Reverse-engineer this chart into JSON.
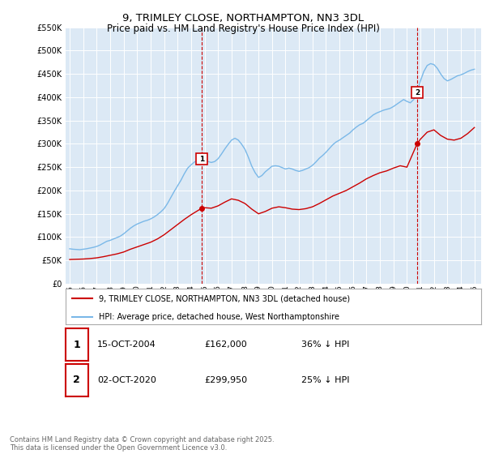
{
  "title": "9, TRIMLEY CLOSE, NORTHAMPTON, NN3 3DL",
  "subtitle": "Price paid vs. HM Land Registry's House Price Index (HPI)",
  "title_fontsize": 9.5,
  "subtitle_fontsize": 8.5,
  "background_color": "#ffffff",
  "plot_bg_color": "#dce9f5",
  "grid_color": "#ffffff",
  "ylim": [
    0,
    550000
  ],
  "yticks": [
    0,
    50000,
    100000,
    150000,
    200000,
    250000,
    300000,
    350000,
    400000,
    450000,
    500000,
    550000
  ],
  "xlim_start": 1994.7,
  "xlim_end": 2025.5,
  "xtick_years": [
    1995,
    1996,
    1997,
    1998,
    1999,
    2000,
    2001,
    2002,
    2003,
    2004,
    2005,
    2006,
    2007,
    2008,
    2009,
    2010,
    2011,
    2012,
    2013,
    2014,
    2015,
    2016,
    2017,
    2018,
    2019,
    2020,
    2021,
    2022,
    2023,
    2024,
    2025
  ],
  "hpi_color": "#7ab8e8",
  "price_color": "#cc0000",
  "marker1_x": 2004.79,
  "marker1_y": 162000,
  "marker2_x": 2020.75,
  "marker2_y": 299950,
  "legend_line1": "9, TRIMLEY CLOSE, NORTHAMPTON, NN3 3DL (detached house)",
  "legend_line2": "HPI: Average price, detached house, West Northamptonshire",
  "ann1_date": "15-OCT-2004",
  "ann1_price": "£162,000",
  "ann1_hpi": "36% ↓ HPI",
  "ann2_date": "02-OCT-2020",
  "ann2_price": "£299,950",
  "ann2_hpi": "25% ↓ HPI",
  "footer": "Contains HM Land Registry data © Crown copyright and database right 2025.\nThis data is licensed under the Open Government Licence v3.0.",
  "hpi_data_x": [
    1995.0,
    1995.25,
    1995.5,
    1995.75,
    1996.0,
    1996.25,
    1996.5,
    1996.75,
    1997.0,
    1997.25,
    1997.5,
    1997.75,
    1998.0,
    1998.25,
    1998.5,
    1998.75,
    1999.0,
    1999.25,
    1999.5,
    1999.75,
    2000.0,
    2000.25,
    2000.5,
    2000.75,
    2001.0,
    2001.25,
    2001.5,
    2001.75,
    2002.0,
    2002.25,
    2002.5,
    2002.75,
    2003.0,
    2003.25,
    2003.5,
    2003.75,
    2004.0,
    2004.25,
    2004.5,
    2004.75,
    2005.0,
    2005.25,
    2005.5,
    2005.75,
    2006.0,
    2006.25,
    2006.5,
    2006.75,
    2007.0,
    2007.25,
    2007.5,
    2007.75,
    2008.0,
    2008.25,
    2008.5,
    2008.75,
    2009.0,
    2009.25,
    2009.5,
    2009.75,
    2010.0,
    2010.25,
    2010.5,
    2010.75,
    2011.0,
    2011.25,
    2011.5,
    2011.75,
    2012.0,
    2012.25,
    2012.5,
    2012.75,
    2013.0,
    2013.25,
    2013.5,
    2013.75,
    2014.0,
    2014.25,
    2014.5,
    2014.75,
    2015.0,
    2015.25,
    2015.5,
    2015.75,
    2016.0,
    2016.25,
    2016.5,
    2016.75,
    2017.0,
    2017.25,
    2017.5,
    2017.75,
    2018.0,
    2018.25,
    2018.5,
    2018.75,
    2019.0,
    2019.25,
    2019.5,
    2019.75,
    2020.0,
    2020.25,
    2020.5,
    2020.75,
    2021.0,
    2021.25,
    2021.5,
    2021.75,
    2022.0,
    2022.25,
    2022.5,
    2022.75,
    2023.0,
    2023.25,
    2023.5,
    2023.75,
    2024.0,
    2024.25,
    2024.5,
    2024.75,
    2025.0
  ],
  "hpi_data_y": [
    75000,
    74000,
    73500,
    73000,
    74000,
    75000,
    76500,
    78000,
    80000,
    83000,
    87000,
    91000,
    93000,
    96000,
    99000,
    102000,
    107000,
    113000,
    119000,
    124000,
    128000,
    131000,
    134000,
    136000,
    139000,
    143000,
    148000,
    154000,
    161000,
    172000,
    185000,
    198000,
    210000,
    222000,
    236000,
    248000,
    255000,
    261000,
    265000,
    268000,
    265000,
    262000,
    260000,
    262000,
    268000,
    278000,
    289000,
    299000,
    308000,
    312000,
    308000,
    299000,
    288000,
    271000,
    252000,
    238000,
    228000,
    232000,
    240000,
    246000,
    252000,
    253000,
    252000,
    249000,
    246000,
    248000,
    246000,
    243000,
    241000,
    243000,
    246000,
    249000,
    254000,
    261000,
    269000,
    275000,
    282000,
    290000,
    298000,
    304000,
    308000,
    313000,
    318000,
    323000,
    330000,
    336000,
    341000,
    344000,
    350000,
    356000,
    362000,
    366000,
    369000,
    372000,
    374000,
    376000,
    380000,
    385000,
    390000,
    395000,
    391000,
    388000,
    395000,
    410000,
    435000,
    455000,
    468000,
    472000,
    470000,
    462000,
    450000,
    440000,
    435000,
    438000,
    442000,
    446000,
    448000,
    451000,
    455000,
    458000,
    460000
  ],
  "price_data_x": [
    1995.0,
    1995.5,
    1996.0,
    1996.5,
    1997.0,
    1997.5,
    1998.0,
    1998.5,
    1999.0,
    1999.5,
    2000.0,
    2000.5,
    2001.0,
    2001.5,
    2002.0,
    2002.5,
    2003.0,
    2003.5,
    2004.0,
    2004.79,
    2005.0,
    2005.5,
    2006.0,
    2006.5,
    2007.0,
    2007.5,
    2008.0,
    2008.5,
    2009.0,
    2009.5,
    2010.0,
    2010.5,
    2011.0,
    2011.5,
    2012.0,
    2012.5,
    2013.0,
    2013.5,
    2014.0,
    2014.5,
    2015.0,
    2015.5,
    2016.0,
    2016.5,
    2017.0,
    2017.5,
    2018.0,
    2018.5,
    2019.0,
    2019.5,
    2020.0,
    2020.75,
    2021.0,
    2021.5,
    2022.0,
    2022.5,
    2023.0,
    2023.5,
    2024.0,
    2024.5,
    2025.0
  ],
  "price_data_y": [
    52000,
    52500,
    53000,
    54000,
    55500,
    58000,
    61000,
    64000,
    68000,
    74000,
    79000,
    84000,
    89000,
    96000,
    105000,
    116000,
    127000,
    138000,
    148000,
    162000,
    163000,
    162000,
    167000,
    175000,
    182000,
    179000,
    172000,
    160000,
    150000,
    155000,
    162000,
    165000,
    163000,
    160000,
    159000,
    161000,
    165000,
    172000,
    180000,
    188000,
    194000,
    200000,
    208000,
    216000,
    225000,
    232000,
    238000,
    242000,
    248000,
    253000,
    250000,
    299950,
    310000,
    325000,
    330000,
    318000,
    310000,
    308000,
    312000,
    322000,
    335000
  ]
}
